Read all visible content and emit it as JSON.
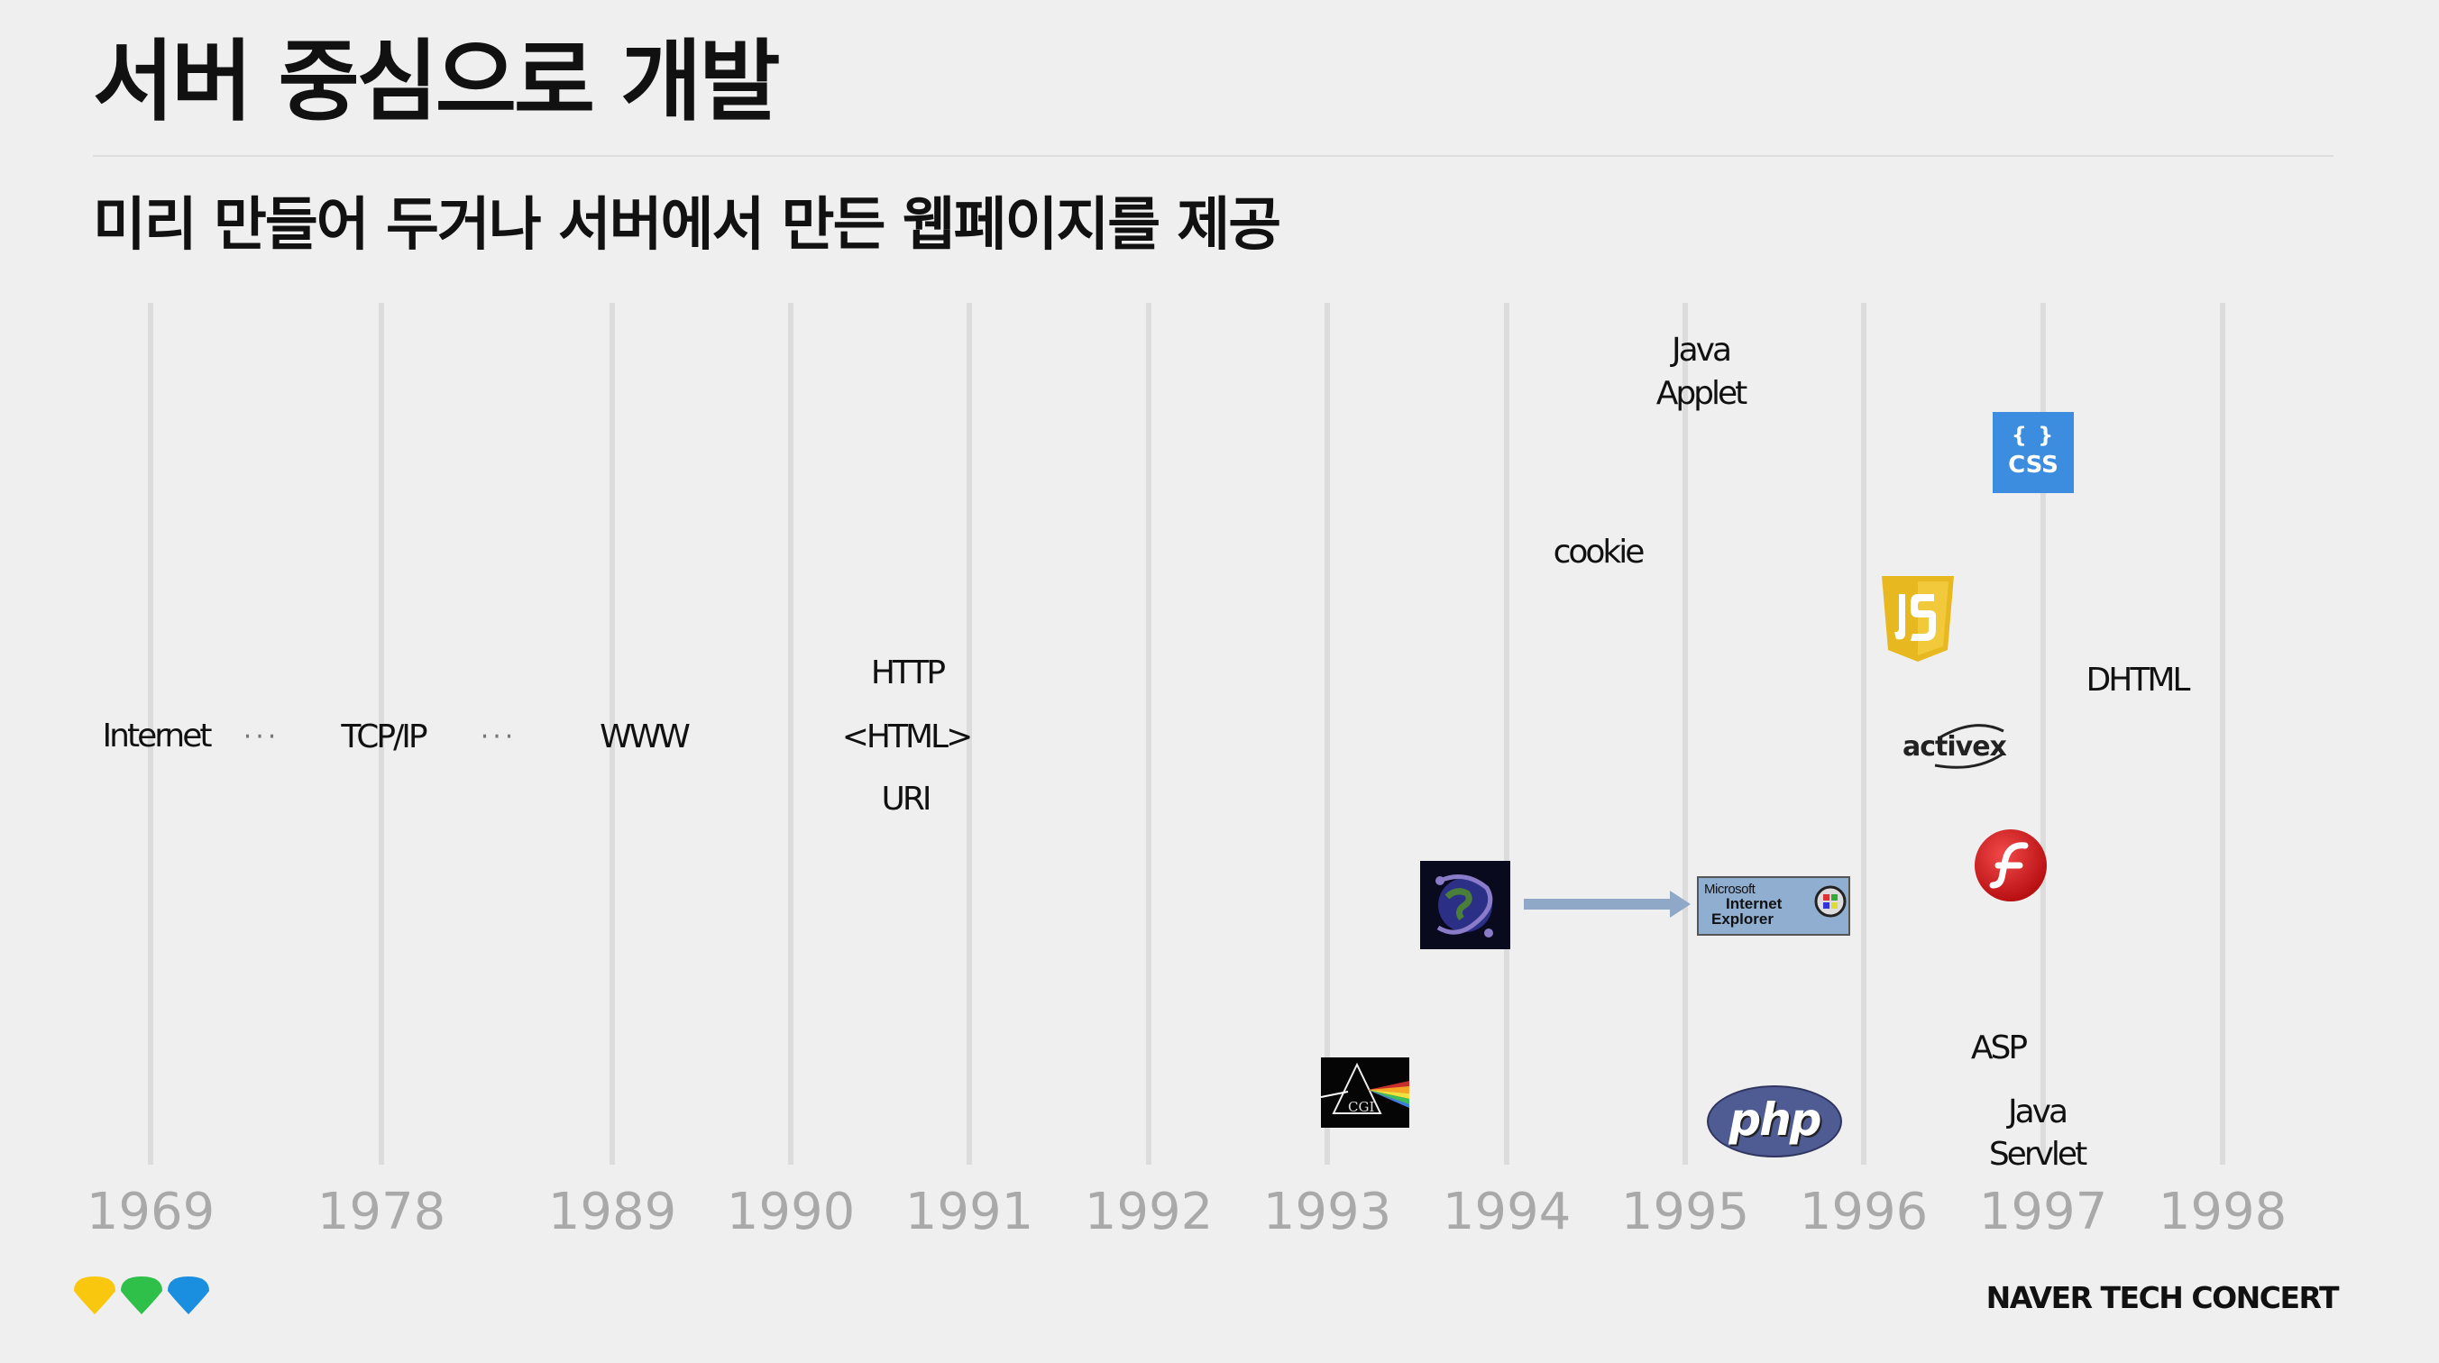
{
  "title": "서버 중심으로 개발",
  "subtitle": "미리 만들어 두거나 서버에서 만든 웹페이지를 제공",
  "timeline": {
    "years": [
      "1969",
      "1978",
      "1989",
      "1990",
      "1991",
      "1992",
      "1993",
      "1994",
      "1995",
      "1996",
      "1997",
      "1998"
    ],
    "ellipsis": "···",
    "labels": {
      "internet": "Internet",
      "tcpip": "TCP/IP",
      "www": "WWW",
      "http": "HTTP",
      "html": "<HTML>",
      "uri": "URI",
      "cookie": "cookie",
      "java_applet_1": "Java",
      "java_applet_2": "Applet",
      "dhtml": "DHTML",
      "asp": "ASP",
      "java_servlet_1": "Java",
      "java_servlet_2": "Servlet"
    },
    "logos": {
      "css_top": "{ }",
      "css_bottom": "CSS",
      "cgi": "CGI",
      "ie_1": "Microsoft",
      "ie_2": "Internet",
      "ie_3": "Explorer",
      "php": "php",
      "activex": "activex"
    }
  },
  "colors": {
    "background": "#efefef",
    "grid": "#dcdcdc",
    "year": "#a9a9a9",
    "arrow": "#8fa8c8",
    "css": "#3c8de0",
    "js": "#e8b820",
    "php": "#4f5b93",
    "flash": "#d8171b",
    "footer_yellow": "#f9c80e",
    "footer_green": "#2fc04a",
    "footer_blue": "#1a8fe0"
  },
  "footer": {
    "brand": "NAVER TECH CONCERT"
  }
}
